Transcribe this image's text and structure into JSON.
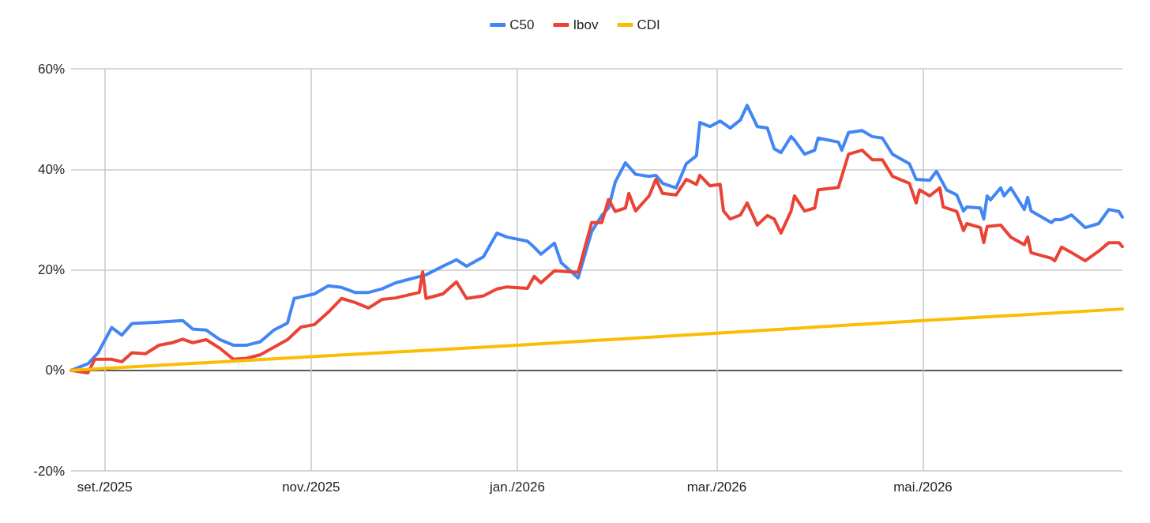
{
  "chart_data": {
    "type": "line",
    "legend": "top",
    "grid": true,
    "marker": "none",
    "line_style": "solid",
    "xlim": [
      "2025-08-22",
      "2026-06-29"
    ],
    "xticks": [
      {
        "value": "2025-09-01",
        "label": "set./2025"
      },
      {
        "value": "2025-11-01",
        "label": "nov./2025"
      },
      {
        "value": "2026-01-01",
        "label": "jan./2026"
      },
      {
        "value": "2026-03-01",
        "label": "mar./2026"
      },
      {
        "value": "2026-05-01",
        "label": "mai./2026"
      }
    ],
    "ylim": [
      -20,
      60
    ],
    "yticks": [
      {
        "value": -20,
        "label": "-20%"
      },
      {
        "value": 0,
        "label": "0%"
      },
      {
        "value": 20,
        "label": "20%"
      },
      {
        "value": 40,
        "label": "40%"
      },
      {
        "value": 60,
        "label": "60%"
      }
    ],
    "series": [
      {
        "name": "C50",
        "color": "#4285f4",
        "x": [
          "2025-08-22",
          "2025-08-27",
          "2025-08-30",
          "2025-09-03",
          "2025-09-06",
          "2025-09-09",
          "2025-09-17",
          "2025-09-24",
          "2025-09-27",
          "2025-10-01",
          "2025-10-05",
          "2025-10-09",
          "2025-10-13",
          "2025-10-17",
          "2025-10-21",
          "2025-10-25",
          "2025-10-27",
          "2025-10-29",
          "2025-11-02",
          "2025-11-06",
          "2025-11-10",
          "2025-11-14",
          "2025-11-18",
          "2025-11-22",
          "2025-11-26",
          "2025-12-05",
          "2025-12-10",
          "2025-12-14",
          "2025-12-17",
          "2025-12-22",
          "2025-12-26",
          "2025-12-29",
          "2026-01-04",
          "2026-01-06",
          "2026-01-08",
          "2026-01-12",
          "2026-01-14",
          "2026-01-19",
          "2026-01-23",
          "2026-01-26",
          "2026-01-28",
          "2026-01-30",
          "2026-02-02",
          "2026-02-05",
          "2026-02-09",
          "2026-02-11",
          "2026-02-13",
          "2026-02-17",
          "2026-02-20",
          "2026-02-23",
          "2026-02-24",
          "2026-02-27",
          "2026-03-02",
          "2026-03-05",
          "2026-03-08",
          "2026-03-10",
          "2026-03-13",
          "2026-03-16",
          "2026-03-18",
          "2026-03-20",
          "2026-03-23",
          "2026-03-24",
          "2026-03-27",
          "2026-03-30",
          "2026-03-31",
          "2026-04-06",
          "2026-04-07",
          "2026-04-09",
          "2026-04-13",
          "2026-04-16",
          "2026-04-19",
          "2026-04-22",
          "2026-04-27",
          "2026-04-29",
          "2026-05-03",
          "2026-05-05",
          "2026-05-08",
          "2026-05-11",
          "2026-05-13",
          "2026-05-14",
          "2026-05-18",
          "2026-05-19",
          "2026-05-20",
          "2026-05-21",
          "2026-05-24",
          "2026-05-25",
          "2026-05-27",
          "2026-05-31",
          "2026-06-01",
          "2026-06-02",
          "2026-06-08",
          "2026-06-09",
          "2026-06-11",
          "2026-06-14",
          "2026-06-18",
          "2026-06-22",
          "2026-06-25",
          "2026-06-28",
          "2026-06-29"
        ],
        "values": [
          0,
          1.3,
          3.5,
          8.5,
          7,
          9.3,
          9.6,
          9.9,
          8.2,
          8,
          6.1,
          5,
          5,
          5.7,
          8,
          9.4,
          14.3,
          14.6,
          15.2,
          16.8,
          16.5,
          15.5,
          15.5,
          16.2,
          17.4,
          19,
          20.7,
          22,
          20.7,
          22.6,
          27.3,
          26.5,
          25.7,
          24.5,
          23.1,
          25.3,
          21.4,
          18.4,
          27.6,
          30.8,
          32.3,
          37.5,
          41.3,
          39,
          38.6,
          38.8,
          37.2,
          36.3,
          41.1,
          42.7,
          49.3,
          48.5,
          49.6,
          48.2,
          49.8,
          52.7,
          48.5,
          48.2,
          44.1,
          43.3,
          46.5,
          45.8,
          43,
          43.8,
          46.2,
          45.4,
          43.8,
          47.3,
          47.7,
          46.5,
          46.2,
          43,
          41.1,
          38,
          37.8,
          39.6,
          35.9,
          34.9,
          31.7,
          32.5,
          32.3,
          30.1,
          34.7,
          33.9,
          36.3,
          34.7,
          36.3,
          32,
          34.4,
          31.7,
          29.4,
          30,
          30,
          30.9,
          28.4,
          29.2,
          32,
          31.6,
          30.5
        ]
      },
      {
        "name": "Ibov",
        "color": "#ea4335",
        "x": [
          "2025-08-22",
          "2025-08-27",
          "2025-08-29",
          "2025-09-03",
          "2025-09-06",
          "2025-09-09",
          "2025-09-13",
          "2025-09-17",
          "2025-09-21",
          "2025-09-24",
          "2025-09-27",
          "2025-10-01",
          "2025-10-05",
          "2025-10-09",
          "2025-10-13",
          "2025-10-17",
          "2025-10-21",
          "2025-10-25",
          "2025-10-29",
          "2025-11-02",
          "2025-11-06",
          "2025-11-10",
          "2025-11-14",
          "2025-11-18",
          "2025-11-22",
          "2025-11-26",
          "2025-12-03",
          "2025-12-04",
          "2025-12-05",
          "2025-12-10",
          "2025-12-14",
          "2025-12-17",
          "2025-12-22",
          "2025-12-26",
          "2025-12-29",
          "2026-01-04",
          "2026-01-06",
          "2026-01-08",
          "2026-01-12",
          "2026-01-19",
          "2026-01-23",
          "2026-01-26",
          "2026-01-28",
          "2026-01-30",
          "2026-02-02",
          "2026-02-03",
          "2026-02-05",
          "2026-02-09",
          "2026-02-11",
          "2026-02-13",
          "2026-02-17",
          "2026-02-20",
          "2026-02-23",
          "2026-02-24",
          "2026-02-27",
          "2026-03-02",
          "2026-03-03",
          "2026-03-05",
          "2026-03-08",
          "2026-03-10",
          "2026-03-13",
          "2026-03-16",
          "2026-03-18",
          "2026-03-20",
          "2026-03-23",
          "2026-03-24",
          "2026-03-27",
          "2026-03-30",
          "2026-03-31",
          "2026-04-06",
          "2026-04-09",
          "2026-04-13",
          "2026-04-16",
          "2026-04-19",
          "2026-04-22",
          "2026-04-27",
          "2026-04-29",
          "2026-04-30",
          "2026-05-03",
          "2026-05-06",
          "2026-05-07",
          "2026-05-11",
          "2026-05-13",
          "2026-05-14",
          "2026-05-18",
          "2026-05-19",
          "2026-05-20",
          "2026-05-24",
          "2026-05-27",
          "2026-05-31",
          "2026-06-01",
          "2026-06-02",
          "2026-06-08",
          "2026-06-09",
          "2026-06-11",
          "2026-06-14",
          "2026-06-18",
          "2026-06-22",
          "2026-06-25",
          "2026-06-28",
          "2026-06-29"
        ],
        "values": [
          0,
          -0.5,
          2.2,
          2.2,
          1.7,
          3.5,
          3.3,
          5,
          5.5,
          6.2,
          5.5,
          6.1,
          4.4,
          2.2,
          2.4,
          3.1,
          4.6,
          6.1,
          8.6,
          9.1,
          11.5,
          14.3,
          13.5,
          12.4,
          14.1,
          14.4,
          15.5,
          19.6,
          14.3,
          15.2,
          17.6,
          14.3,
          14.8,
          16.2,
          16.6,
          16.3,
          18.7,
          17.4,
          19.8,
          19.5,
          29.4,
          29.4,
          34,
          31.6,
          32.3,
          35.2,
          31.7,
          34.7,
          38,
          35.2,
          34.9,
          38,
          37,
          38.8,
          36.7,
          37,
          31.7,
          30.1,
          30.9,
          33.3,
          28.9,
          30.8,
          30.1,
          27.3,
          31.7,
          34.7,
          31.7,
          32.3,
          35.9,
          36.4,
          43,
          43.8,
          41.9,
          41.9,
          38.6,
          37.2,
          33.3,
          35.9,
          34.7,
          36.3,
          32.5,
          31.6,
          27.8,
          29.2,
          28.4,
          25.4,
          28.6,
          28.9,
          26.5,
          25,
          26.5,
          23.4,
          22.3,
          21.8,
          24.5,
          23.4,
          21.8,
          23.7,
          25.4,
          25.4,
          24.6
        ]
      },
      {
        "name": "CDI",
        "color": "#fbbc04",
        "x": [
          "2025-08-22",
          "2025-11-01",
          "2026-01-01",
          "2026-03-01",
          "2026-05-01",
          "2026-06-29"
        ],
        "values": [
          0,
          2.7,
          5,
          7.4,
          9.9,
          12.2
        ]
      }
    ]
  }
}
